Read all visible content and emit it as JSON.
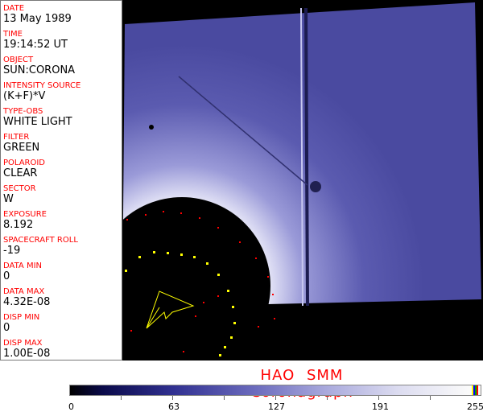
{
  "fields": [
    {
      "label": "DATE",
      "value": "13 May 1989"
    },
    {
      "label": "TIME",
      "value": "19:14:52 UT"
    },
    {
      "label": "OBJECT",
      "value": "SUN:CORONA"
    },
    {
      "label": "INTENSITY SOURCE",
      "value": "(K+F)*V"
    },
    {
      "label": "TYPE-OBS",
      "value": "WHITE LIGHT"
    },
    {
      "label": "FILTER",
      "value": "GREEN"
    },
    {
      "label": "POLAROID",
      "value": "CLEAR"
    },
    {
      "label": "SECTOR",
      "value": "W"
    },
    {
      "label": "EXPOSURE",
      "value": "8.192"
    },
    {
      "label": "SPACECRAFT ROLL",
      "value": "-19"
    },
    {
      "label": "DATA MIN",
      "value": "0"
    },
    {
      "label": "DATA MAX",
      "value": "4.32E-08"
    },
    {
      "label": "DISP MIN",
      "value": "0"
    },
    {
      "label": "DISP MAX",
      "value": "1.00E-08"
    }
  ],
  "title": "HAO   SMM Coronagraph",
  "colorbar": {
    "ticks": [
      "0",
      "63",
      "127",
      "191",
      "255"
    ],
    "colormap": [
      "#000000",
      "#303090",
      "#a8a8dc",
      "#fafafa"
    ],
    "overlay_colors": [
      "#ffff00",
      "#0000ff",
      "#00aa00",
      "#ff0000"
    ]
  }
}
